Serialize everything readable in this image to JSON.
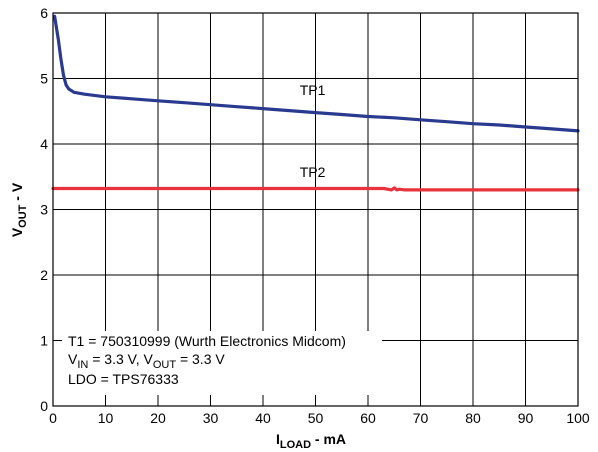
{
  "chart_data": {
    "type": "line",
    "xlabel": {
      "main": "I",
      "sub": "LOAD",
      "suffix": " - mA"
    },
    "ylabel": {
      "main": "V",
      "sub": "OUT",
      "suffix": " - V"
    },
    "xlim": [
      0,
      100
    ],
    "ylim": [
      0,
      6
    ],
    "xticks": [
      0,
      10,
      20,
      30,
      40,
      50,
      60,
      70,
      80,
      90,
      100
    ],
    "yticks": [
      0,
      1,
      2,
      3,
      4,
      5,
      6
    ],
    "grid": true,
    "series": [
      {
        "name": "TP1",
        "color": "#2a3a8f",
        "x": [
          0.3,
          1,
          1.5,
          2,
          2.5,
          3,
          4,
          6,
          10,
          15,
          20,
          25,
          30,
          35,
          40,
          45,
          50,
          55,
          60,
          65,
          70,
          75,
          80,
          85,
          90,
          95,
          100
        ],
        "y": [
          5.95,
          5.6,
          5.3,
          5.05,
          4.9,
          4.84,
          4.79,
          4.76,
          4.72,
          4.69,
          4.66,
          4.63,
          4.6,
          4.57,
          4.54,
          4.51,
          4.48,
          4.45,
          4.42,
          4.4,
          4.37,
          4.34,
          4.31,
          4.29,
          4.26,
          4.23,
          4.2
        ]
      },
      {
        "name": "TP2",
        "color": "#e8333c",
        "x": [
          0,
          10,
          20,
          30,
          40,
          50,
          60,
          63,
          64.5,
          65,
          65.5,
          66,
          67,
          70,
          80,
          90,
          100
        ],
        "y": [
          3.32,
          3.32,
          3.32,
          3.32,
          3.32,
          3.32,
          3.32,
          3.32,
          3.3,
          3.33,
          3.3,
          3.31,
          3.3,
          3.3,
          3.3,
          3.3,
          3.3
        ]
      }
    ],
    "series_labels": [
      {
        "text": "TP1",
        "x": 47,
        "y": 4.75
      },
      {
        "text": "TP2",
        "x": 47,
        "y": 3.5
      }
    ],
    "annotation": {
      "line1": "T1 = 750310999 (Wurth Electronics Midcom)",
      "line2": [
        {
          "text": "V",
          "sub": false
        },
        {
          "text": "IN",
          "sub": true
        },
        {
          "text": " = 3.3 V, V",
          "sub": false
        },
        {
          "text": "OUT",
          "sub": true
        },
        {
          "text": " = 3.3 V",
          "sub": false
        }
      ],
      "line3": "LDO = TPS76333"
    }
  }
}
